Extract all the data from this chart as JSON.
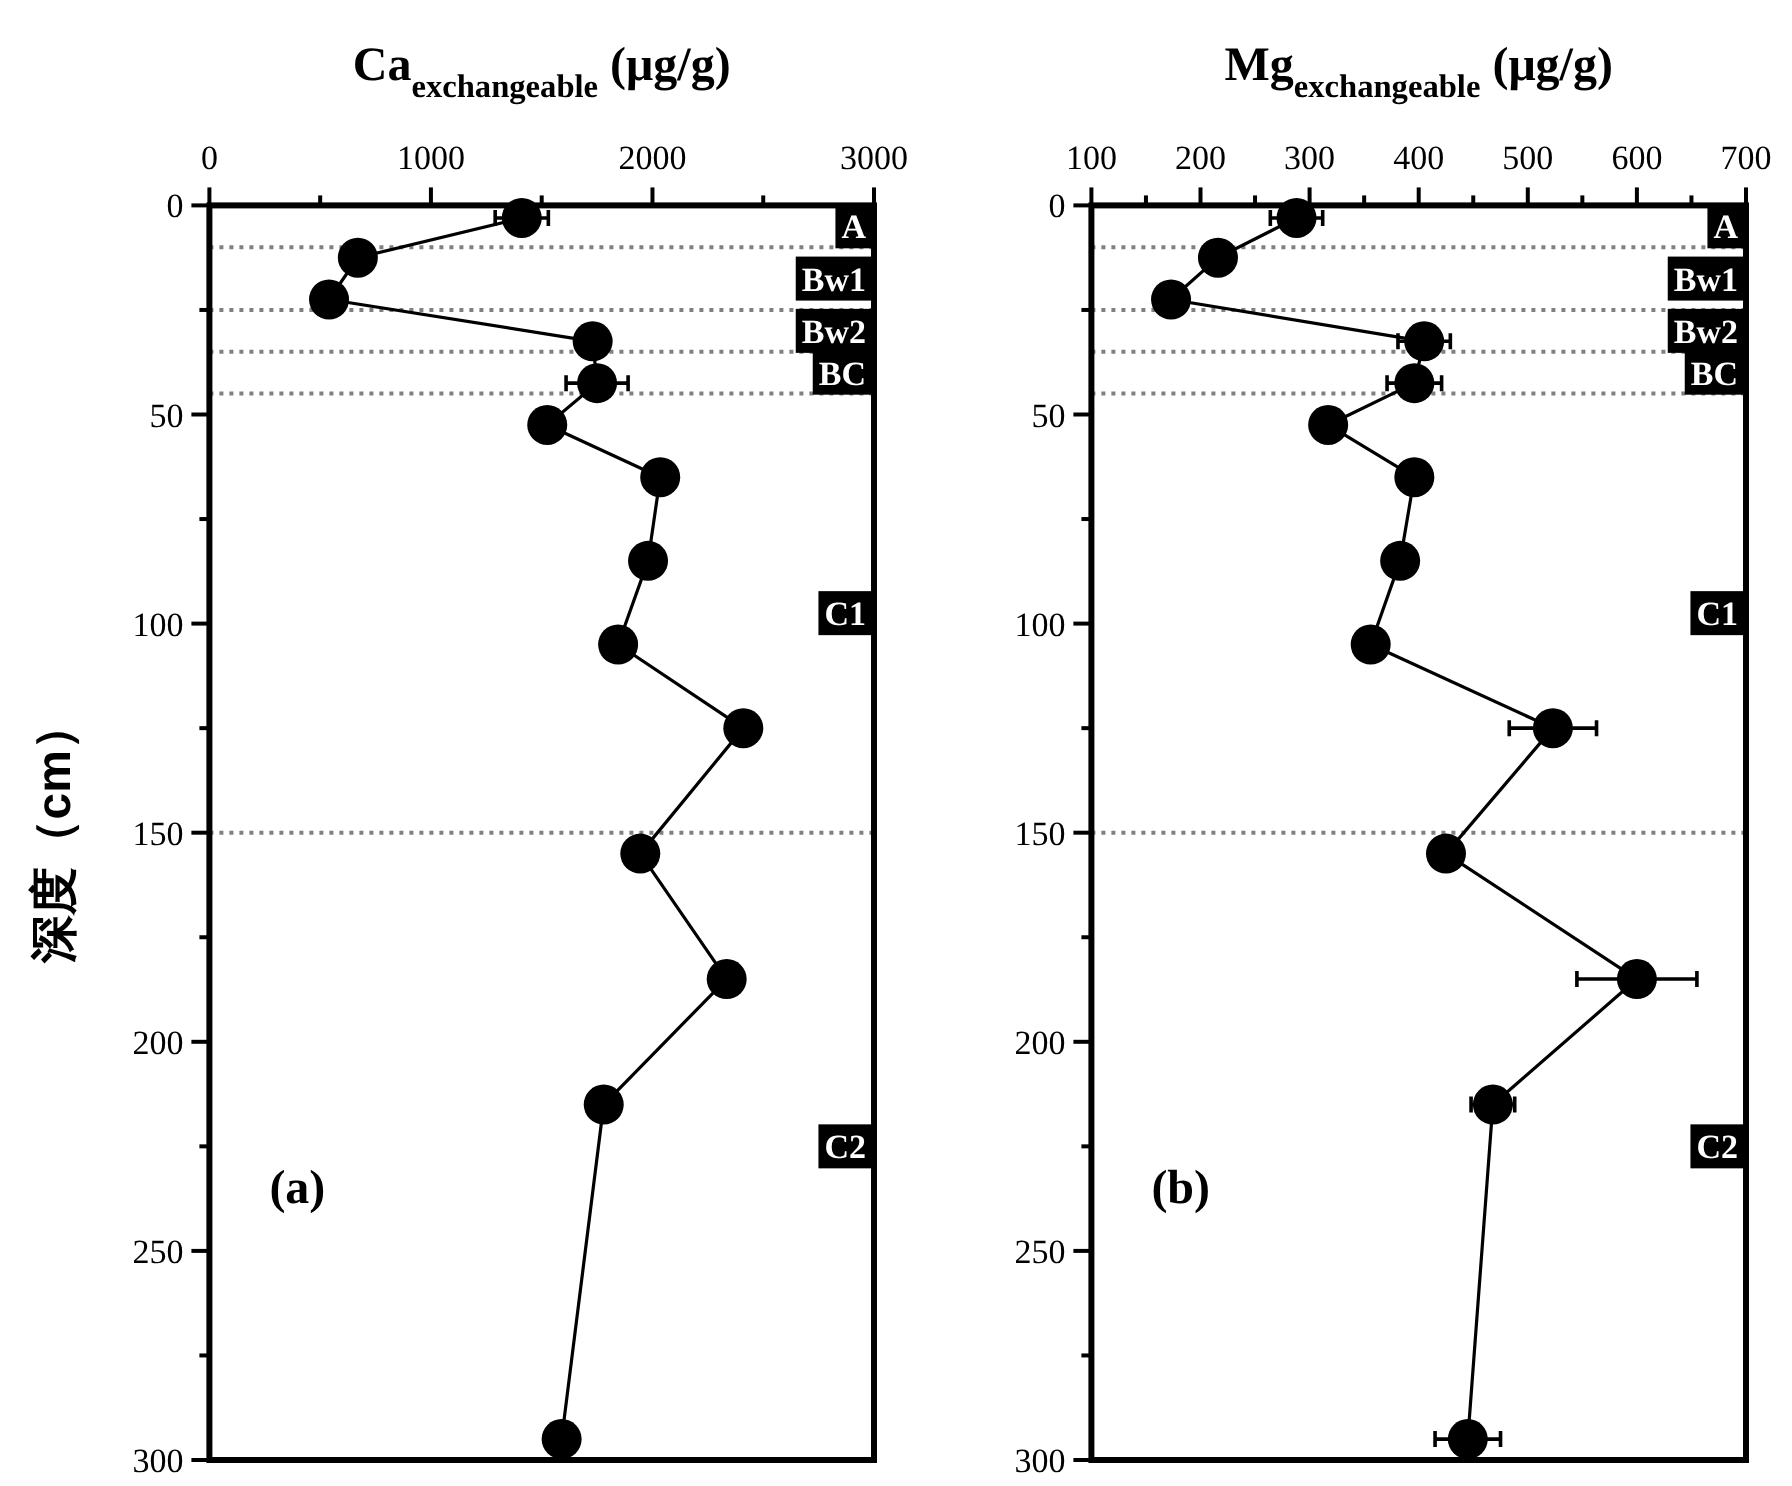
{
  "chart_data": [
    {
      "type": "line",
      "xlabel": "Ca$_{exchangeable}$ (μg/g)",
      "ylabel": "深度（cm）",
      "marker": "circle",
      "line_style": "solid",
      "xlim": [
        0,
        3000
      ],
      "xticks": [
        0,
        {
          "value": 500,
          "label": null
        },
        1000,
        {
          "value": 1500,
          "label": null
        },
        2000,
        {
          "value": 2500,
          "label": null
        },
        3000
      ],
      "ylim": [
        300,
        0
      ],
      "yticks": [
        0,
        {
          "value": 25,
          "label": null
        },
        50,
        {
          "value": 75,
          "label": null
        },
        100,
        {
          "value": 125,
          "label": null
        },
        150,
        {
          "value": 175,
          "label": null
        },
        200,
        {
          "value": 225,
          "label": null
        },
        250,
        {
          "value": 275,
          "label": null
        },
        300
      ],
      "series": [
        {
          "color": "#000000",
          "x": [
            1410,
            670,
            540,
            1730,
            1750,
            1525,
            2035,
            1980,
            1845,
            2410,
            1945,
            2335,
            1780,
            1590
          ],
          "values": [
            3,
            12.5,
            22.5,
            32.5,
            42.5,
            52.5,
            65,
            85,
            105,
            125,
            155,
            185,
            215,
            295
          ],
          "xerrors": [
            120,
            null,
            null,
            null,
            140,
            null,
            null,
            null,
            null,
            null,
            null,
            null,
            null,
            null
          ]
        }
      ],
      "ref_lines": [
        {
          "axis": "y",
          "value": 10,
          "color": "#808080",
          "line_style": "dotted"
        },
        {
          "axis": "y",
          "value": 25,
          "color": "#808080",
          "line_style": "dotted"
        },
        {
          "axis": "y",
          "value": 35,
          "color": "#808080",
          "line_style": "dotted"
        },
        {
          "axis": "y",
          "value": 45,
          "color": "#808080",
          "line_style": "dotted"
        },
        {
          "axis": "y",
          "value": 150,
          "color": "#808080",
          "line_style": "dotted"
        }
      ],
      "annotations": [
        "A",
        "Bw1",
        "Bw2",
        "BC",
        "C1",
        "C2",
        "(a)"
      ]
    },
    {
      "type": "line",
      "xlabel": "Mg$_{exchangeable}$ (μg/g)",
      "marker": "circle",
      "line_style": "solid",
      "xlim": [
        100,
        700
      ],
      "xticks": [
        100,
        {
          "value": 150,
          "label": null
        },
        200,
        {
          "value": 250,
          "label": null
        },
        300,
        {
          "value": 350,
          "label": null
        },
        400,
        {
          "value": 450,
          "label": null
        },
        500,
        {
          "value": 550,
          "label": null
        },
        600,
        {
          "value": 650,
          "label": null
        },
        700
      ],
      "ylim": [
        300,
        0
      ],
      "yticks": [
        0,
        {
          "value": 25,
          "label": null
        },
        50,
        {
          "value": 75,
          "label": null
        },
        100,
        {
          "value": 125,
          "label": null
        },
        150,
        {
          "value": 175,
          "label": null
        },
        200,
        {
          "value": 225,
          "label": null
        },
        250,
        {
          "value": 275,
          "label": null
        },
        300
      ],
      "series": [
        {
          "color": "#000000",
          "x": [
            288,
            216,
            173,
            405,
            396,
            317,
            396,
            383,
            356,
            523,
            425,
            600,
            468,
            445
          ],
          "values": [
            3,
            12.5,
            22.5,
            32.5,
            42.5,
            52.5,
            65,
            85,
            105,
            125,
            155,
            185,
            215,
            295
          ],
          "xerrors": [
            24,
            null,
            null,
            24,
            25,
            null,
            null,
            null,
            null,
            40,
            null,
            55,
            20,
            30
          ]
        }
      ],
      "ref_lines": [
        {
          "axis": "y",
          "value": 10,
          "color": "#808080",
          "line_style": "dotted"
        },
        {
          "axis": "y",
          "value": 25,
          "color": "#808080",
          "line_style": "dotted"
        },
        {
          "axis": "y",
          "value": 35,
          "color": "#808080",
          "line_style": "dotted"
        },
        {
          "axis": "y",
          "value": 45,
          "color": "#808080",
          "line_style": "dotted"
        },
        {
          "axis": "y",
          "value": 150,
          "color": "#808080",
          "line_style": "dotted"
        }
      ],
      "annotations": [
        "A",
        "Bw1",
        "Bw2",
        "BC",
        "C1",
        "C2",
        "(b)"
      ]
    }
  ]
}
